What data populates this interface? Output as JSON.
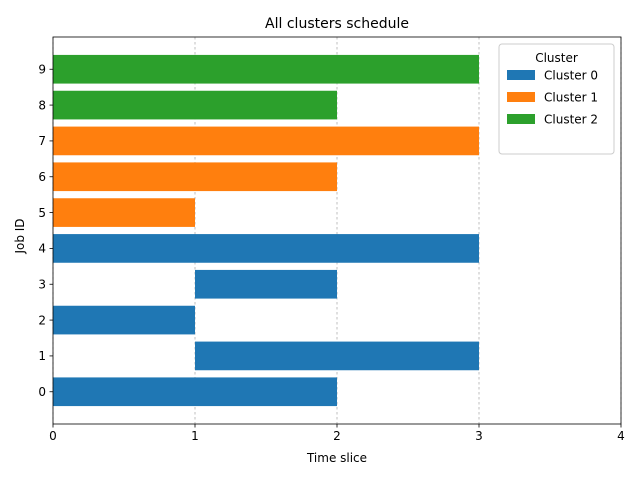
{
  "chart_data": {
    "type": "bar",
    "orientation": "horizontal-gantt",
    "title": "All clusters schedule",
    "xlabel": "Time slice",
    "ylabel": "Job ID",
    "xlim": [
      0,
      4
    ],
    "ylim": [
      -0.9,
      9.9
    ],
    "x_ticks": [
      "0",
      "1",
      "2",
      "3",
      "4"
    ],
    "y_ticks": [
      "0",
      "1",
      "2",
      "3",
      "4",
      "5",
      "6",
      "7",
      "8",
      "9"
    ],
    "grid": "x, dashed",
    "legend": {
      "title": "Cluster",
      "placement": "top-right",
      "entries": [
        {
          "label": "Cluster 0",
          "color": "#1f77b4"
        },
        {
          "label": "Cluster 1",
          "color": "#ff7f0e"
        },
        {
          "label": "Cluster 2",
          "color": "#2ca02c"
        }
      ]
    },
    "series": [
      {
        "name": "Cluster 0",
        "color": "#1f77b4",
        "bars": [
          {
            "job": 0,
            "start": 0,
            "end": 2
          },
          {
            "job": 1,
            "start": 1,
            "end": 3
          },
          {
            "job": 2,
            "start": 0,
            "end": 1
          },
          {
            "job": 3,
            "start": 1,
            "end": 2
          },
          {
            "job": 4,
            "start": 0,
            "end": 3
          }
        ]
      },
      {
        "name": "Cluster 1",
        "color": "#ff7f0e",
        "bars": [
          {
            "job": 5,
            "start": 0,
            "end": 1
          },
          {
            "job": 6,
            "start": 0,
            "end": 2
          },
          {
            "job": 7,
            "start": 0,
            "end": 3
          }
        ]
      },
      {
        "name": "Cluster 2",
        "color": "#2ca02c",
        "bars": [
          {
            "job": 8,
            "start": 0,
            "end": 2
          },
          {
            "job": 9,
            "start": 0,
            "end": 3
          }
        ]
      }
    ]
  }
}
